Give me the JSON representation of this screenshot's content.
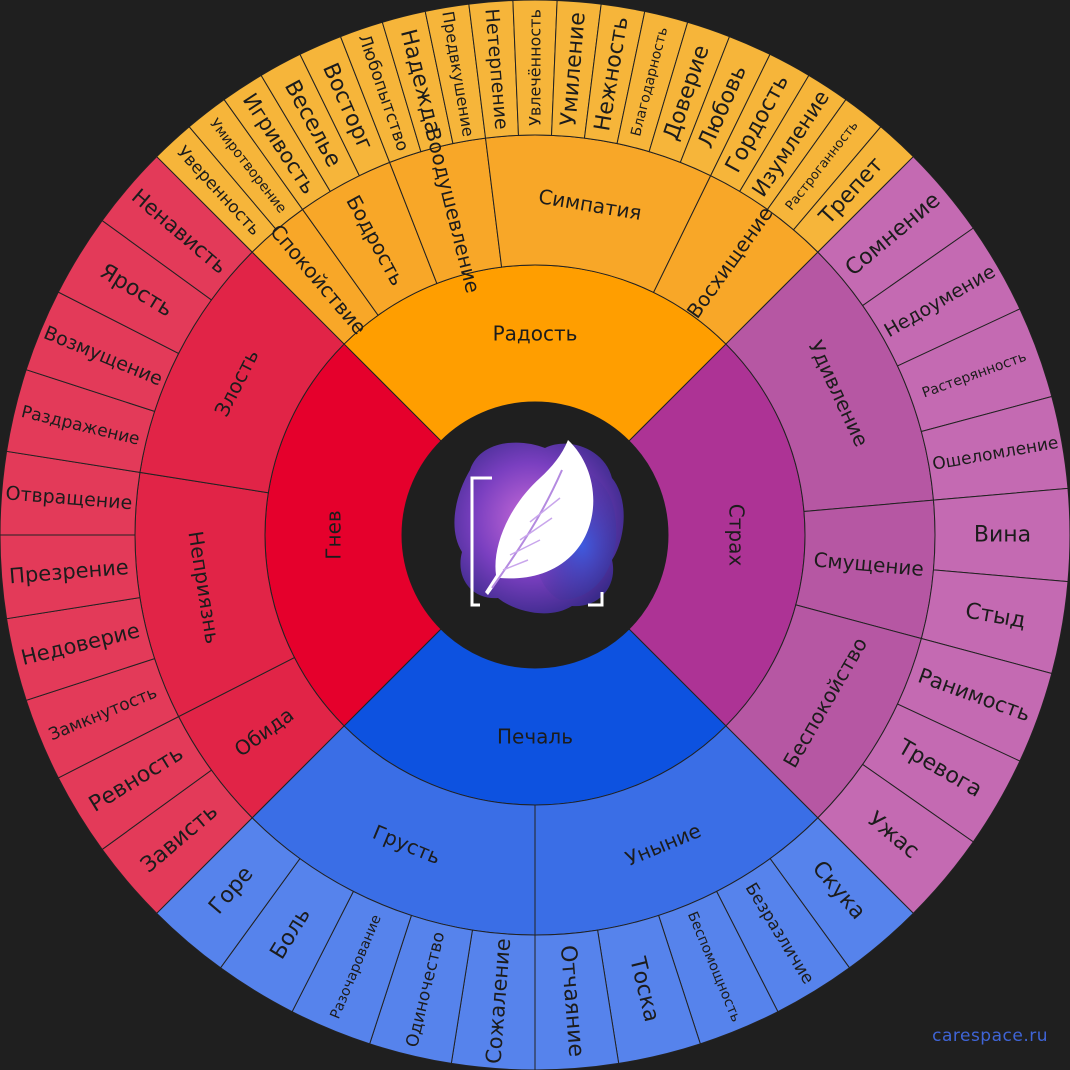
{
  "brand": "carespace.ru",
  "logo_icon": "feather-icon",
  "colors": {
    "background": "#1f1f1f",
    "center": "#1f1f1f",
    "stroke": "#222222"
  },
  "wheel": [
    {
      "name": "Радость",
      "colors": [
        "#ff9e00",
        "#f8a728",
        "#f6b53a"
      ],
      "children": [
        {
          "name": "Спокойствие",
          "leaves": [
            "Уверенность",
            "Умиротворение"
          ]
        },
        {
          "name": "Бодрость",
          "leaves": [
            "Игривость",
            "Веселье",
            "Восторг"
          ]
        },
        {
          "name": "Воодушевление",
          "leaves": [
            "Любопытство",
            "Надежда",
            "Предвкушение"
          ]
        },
        {
          "name": "Симпатия",
          "leaves": [
            "Нетерпение",
            "Увлечённость",
            "Умиление",
            "Нежность",
            "Благодарность",
            "Доверие",
            "Любовь"
          ]
        },
        {
          "name": "Восхищение",
          "leaves": [
            "Гордость",
            "Изумление",
            "Растроганность",
            "Трепет"
          ]
        }
      ]
    },
    {
      "name": "Страх",
      "colors": [
        "#ad3395",
        "#b657a3",
        "#c46ab2"
      ],
      "children": [
        {
          "name": "Удивление",
          "leaves": [
            "Сомнение",
            "Недоумение",
            "Растерянность",
            "Ошеломление"
          ]
        },
        {
          "name": "Смущение",
          "leaves": [
            "Вина",
            "Стыд"
          ]
        },
        {
          "name": "Беспокойство",
          "leaves": [
            "Ранимость",
            "Тревога",
            "Ужас"
          ]
        }
      ]
    },
    {
      "name": "Печаль",
      "colors": [
        "#0d52e0",
        "#3a6ee6",
        "#5683ec"
      ],
      "children": [
        {
          "name": "Уныние",
          "leaves": [
            "Скука",
            "Безразличие",
            "Беспомощность",
            "Тоска",
            "Отчаяние"
          ]
        },
        {
          "name": "Грусть",
          "leaves": [
            "Сожаление",
            "Одиночество",
            "Разочарование",
            "Боль",
            "Горе"
          ]
        }
      ]
    },
    {
      "name": "Гнев",
      "colors": [
        "#e5002c",
        "#e12447",
        "#e33a59"
      ],
      "children": [
        {
          "name": "Обида",
          "leaves": [
            "Зависть",
            "Ревность"
          ]
        },
        {
          "name": "Неприязнь",
          "leaves": [
            "Замкнутость",
            "Недоверие",
            "Презрение",
            "Отвращение"
          ]
        },
        {
          "name": "Злость",
          "leaves": [
            "Раздражение",
            "Возмущение",
            "Ярость",
            "Ненависть"
          ]
        }
      ]
    }
  ]
}
